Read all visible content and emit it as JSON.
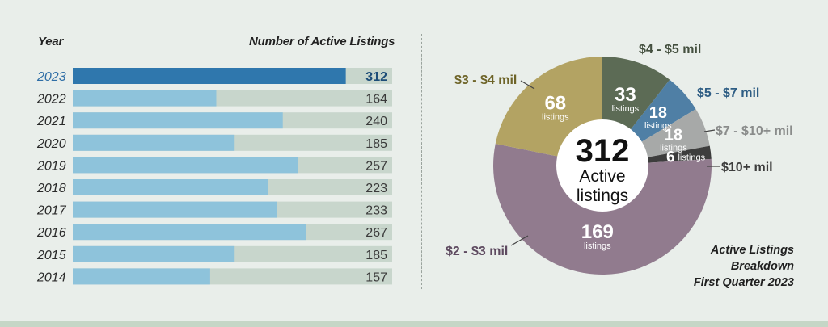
{
  "bar_headers": {
    "year": "Year",
    "count": "Number of Active Listings"
  },
  "pie_center": {
    "number": "312",
    "line1": "Active",
    "line2": "listings"
  },
  "caption": {
    "line1": "Active Listings",
    "line2": "Breakdown",
    "line3": "First Quarter 2023"
  },
  "colors": {
    "highlight_bar": "#2f77ad",
    "bar": "#8ec3db",
    "bar_track": "#c8d6cc",
    "highlight_year": "#2f6ea6"
  },
  "chart_data": [
    {
      "type": "bar",
      "orientation": "horizontal",
      "xlabel": "Number of Active Listings",
      "ylabel": "Year",
      "categories": [
        "2023",
        "2022",
        "2021",
        "2020",
        "2019",
        "2018",
        "2017",
        "2016",
        "2015",
        "2014"
      ],
      "values": [
        312,
        164,
        240,
        185,
        257,
        223,
        233,
        267,
        185,
        157
      ],
      "highlight": "2023",
      "xlim": [
        0,
        365
      ],
      "grid": false
    },
    {
      "type": "pie",
      "donut": true,
      "title": "Active Listings Breakdown First Quarter 2023",
      "total": 312,
      "slices": [
        {
          "label": "$4 - $5 mil",
          "value": 33,
          "sub": "listings",
          "color": "#5c6b55",
          "label_color": "#44503f"
        },
        {
          "label": "$5 - $7 mil",
          "value": 18,
          "sub": "listings",
          "color": "#4f7fa5",
          "label_color": "#2e5d84"
        },
        {
          "label": "$7 - $10+ mil",
          "value": 18,
          "sub": "listings",
          "color": "#a7a9a8",
          "label_color": "#8a8c8b"
        },
        {
          "label": "$10+ mil",
          "value": 6,
          "sub": "listings",
          "color": "#3d3d3d",
          "label_color": "#3d3d3d"
        },
        {
          "label": "$2 - $3 mil",
          "value": 169,
          "sub": "listings",
          "color": "#917b8e",
          "label_color": "#5e4a60"
        },
        {
          "label": "$3 - $4 mil",
          "value": 68,
          "sub": "listings",
          "color": "#b3a363",
          "label_color": "#6e6428"
        }
      ]
    }
  ]
}
